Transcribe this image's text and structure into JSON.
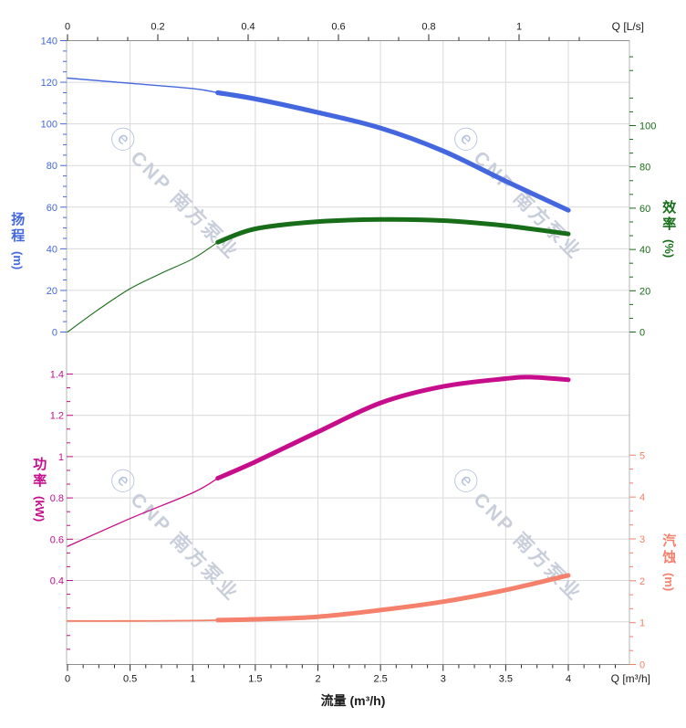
{
  "watermark": {
    "logo_glyph": "ⓔ",
    "text": "CNP 南方泵业"
  },
  "chart_data": {
    "type": "line",
    "title": "",
    "grid": true,
    "x_axis": {
      "bottom_corner_label": "Q [m³/h]",
      "bottom_title": "流量 (m³/h)",
      "bottom_ticks": [
        "0",
        "0.5",
        "1",
        "1.5",
        "2",
        "2.5",
        "3",
        "3.5",
        "4"
      ],
      "bottom_tick_values": [
        0,
        0.5,
        1,
        1.5,
        2,
        2.5,
        3,
        3.5,
        4
      ],
      "bottom_minor_step": 0.125,
      "top_corner_label": "Q [L/s]",
      "top_ticks": [
        "0",
        "0.2",
        "0.4",
        "0.6",
        "0.8",
        "1"
      ],
      "top_tick_values": [
        0,
        0.2,
        0.4,
        0.6,
        0.8,
        1
      ],
      "top_minor_step": 0.0666667,
      "range_m3h": [
        0,
        4.49
      ]
    },
    "axes": {
      "head": {
        "title": "扬程",
        "unit": "(m)",
        "side": "left",
        "color": "#4467DF",
        "tick_labels": [
          "0",
          "20",
          "40",
          "60",
          "80",
          "100",
          "120",
          "140"
        ],
        "tick_values": [
          0,
          20,
          40,
          60,
          80,
          100,
          120,
          140
        ],
        "minor_step": 5,
        "range": [
          0,
          140
        ]
      },
      "eff": {
        "title": "效率",
        "unit": "(%)",
        "side": "right",
        "color": "#176D18",
        "tick_labels": [
          "0",
          "20",
          "40",
          "60",
          "80",
          "100"
        ],
        "tick_values": [
          0,
          20,
          40,
          60,
          80,
          100
        ],
        "minor_step": 6.6666667,
        "range": [
          0,
          100
        ]
      },
      "power": {
        "title": "功率",
        "unit": "(kW)",
        "side": "left",
        "color": "#C60D8C",
        "tick_labels": [
          "0.4",
          "0.6",
          "0.8",
          "1",
          "1.2",
          "1.4"
        ],
        "tick_values": [
          0.4,
          0.6,
          0.8,
          1,
          1.2,
          1.4
        ],
        "minor_step": 0.0666667,
        "range": [
          0.4,
          1.4
        ]
      },
      "npsh": {
        "title": "汽蚀",
        "unit": "(m)",
        "side": "right",
        "color": "#F5806B",
        "tick_labels": [
          "0",
          "1",
          "2",
          "3",
          "4",
          "5"
        ],
        "tick_values": [
          0,
          1,
          2,
          3,
          4,
          5
        ],
        "minor_step": 0.3333333,
        "range": [
          0,
          5
        ]
      }
    },
    "series": [
      {
        "name": "head-curve",
        "axis": "head",
        "color": "#4467DF",
        "rated_from": 1.2,
        "thin_width": 1.4,
        "thick_width": 5.2,
        "points": [
          [
            0,
            122
          ],
          [
            0.5,
            119.5
          ],
          [
            1,
            117
          ],
          [
            1.2,
            115
          ],
          [
            1.5,
            112
          ],
          [
            2,
            105.5
          ],
          [
            2.5,
            98
          ],
          [
            3,
            87
          ],
          [
            3.5,
            72.5
          ],
          [
            4,
            58.5
          ]
        ]
      },
      {
        "name": "efficiency-curve",
        "axis": "eff",
        "color": "#176D18",
        "rated_from": 1.2,
        "thin_width": 1.1,
        "thick_width": 5,
        "points": [
          [
            0,
            0
          ],
          [
            0.25,
            11
          ],
          [
            0.5,
            21
          ],
          [
            0.75,
            28.5
          ],
          [
            1,
            35.5
          ],
          [
            1.2,
            43.5
          ],
          [
            1.5,
            50
          ],
          [
            2,
            53.5
          ],
          [
            2.5,
            54.5
          ],
          [
            3,
            54
          ],
          [
            3.5,
            51.5
          ],
          [
            4,
            47.5
          ]
        ]
      },
      {
        "name": "power-curve",
        "axis": "power",
        "color": "#C60D8C",
        "rated_from": 1.2,
        "thin_width": 1.3,
        "thick_width": 5,
        "points": [
          [
            0,
            0.565
          ],
          [
            0.5,
            0.7
          ],
          [
            1,
            0.825
          ],
          [
            1.2,
            0.895
          ],
          [
            1.5,
            0.975
          ],
          [
            2,
            1.12
          ],
          [
            2.5,
            1.26
          ],
          [
            3,
            1.34
          ],
          [
            3.5,
            1.378
          ],
          [
            3.7,
            1.385
          ],
          [
            4,
            1.372
          ]
        ]
      },
      {
        "name": "npsh-curve",
        "axis": "npsh",
        "color": "#F5806B",
        "rated_from": 1.2,
        "thin_width": 1.8,
        "thick_width": 5,
        "points": [
          [
            0,
            1.04
          ],
          [
            0.5,
            1.04
          ],
          [
            1,
            1.05
          ],
          [
            1.2,
            1.06
          ],
          [
            1.5,
            1.08
          ],
          [
            2,
            1.14
          ],
          [
            2.5,
            1.3
          ],
          [
            3,
            1.5
          ],
          [
            3.5,
            1.78
          ],
          [
            4,
            2.13
          ]
        ]
      }
    ]
  }
}
